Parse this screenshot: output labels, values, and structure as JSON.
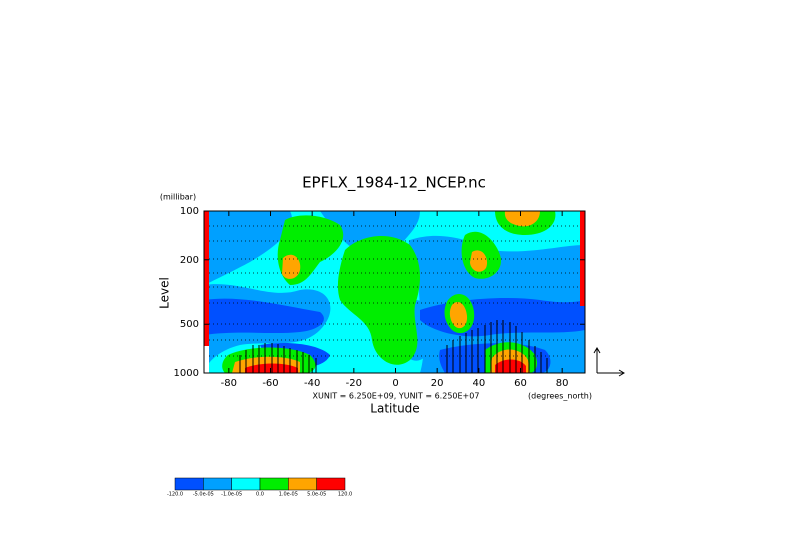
{
  "chart_data": {
    "type": "contour",
    "title": "EPFLX_1984-12_NCEP.nc",
    "xlabel": "Latitude",
    "ylabel": "Level",
    "xunit": "(degrees_north)",
    "yunit": "(millibar)",
    "annotation": "XUNIT = 6.250E+09, YUNIT = 6.250E+07",
    "xlim": [
      -90,
      90
    ],
    "xticks": [
      -80,
      -60,
      -40,
      -20,
      0,
      20,
      40,
      60,
      80
    ],
    "ylim": [
      100,
      1000
    ],
    "yticks": [
      100,
      200,
      500,
      1000
    ],
    "ylog": true,
    "levels": [
      {
        "value": -120,
        "label": "-120.0"
      },
      {
        "value": -5e-05,
        "label": "-5.0e-05"
      },
      {
        "value": -1e-05,
        "label": "-1.0e-05"
      },
      {
        "value": 0,
        "label": "0.0"
      },
      {
        "value": 1e-05,
        "label": "1.0e-05"
      },
      {
        "value": 5e-05,
        "label": "5.0e-05"
      },
      {
        "value": 120,
        "label": "120.0"
      }
    ],
    "level_colors": [
      "#0050ff",
      "#00a0ff",
      "#00ffff",
      "#00ee00",
      "#ffa500",
      "#ff0000"
    ]
  }
}
